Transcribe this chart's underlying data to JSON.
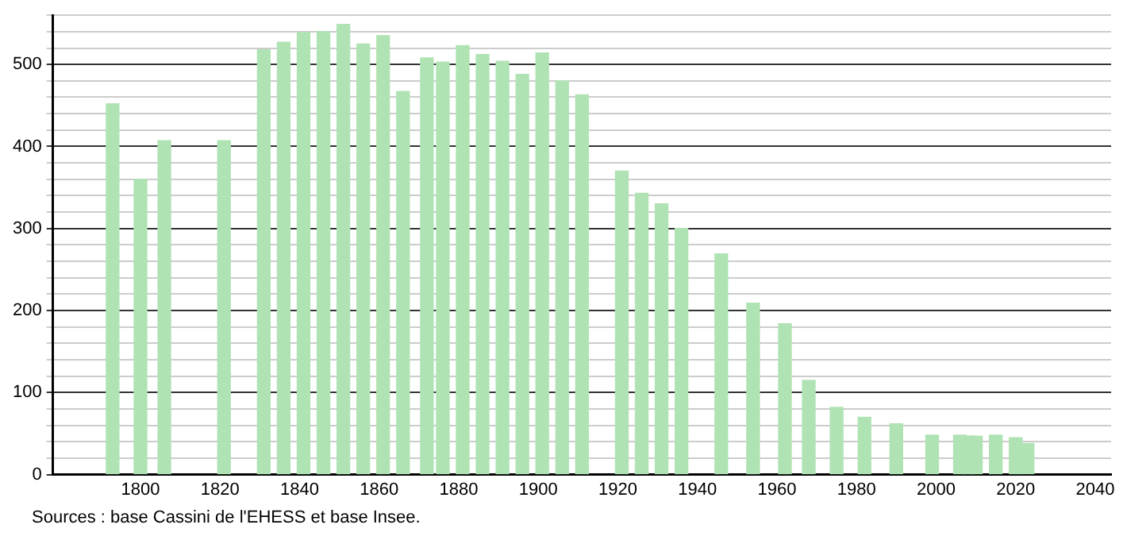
{
  "chart_data": {
    "type": "bar",
    "x": [
      1793,
      1800,
      1806,
      1821,
      1831,
      1836,
      1841,
      1846,
      1851,
      1856,
      1861,
      1866,
      1872,
      1876,
      1881,
      1886,
      1891,
      1896,
      1901,
      1906,
      1911,
      1921,
      1926,
      1931,
      1936,
      1946,
      1954,
      1962,
      1968,
      1975,
      1982,
      1990,
      1999,
      2006,
      2008,
      2010,
      2015,
      2020,
      2023
    ],
    "values": [
      452,
      360,
      407,
      407,
      518,
      527,
      539,
      540,
      549,
      525,
      535,
      467,
      508,
      503,
      523,
      512,
      504,
      488,
      514,
      480,
      463,
      370,
      343,
      330,
      300,
      269,
      209,
      184,
      115,
      82,
      70,
      62,
      48,
      48,
      47,
      47,
      48,
      45,
      38
    ],
    "color": "#b0e3b4",
    "xlim": [
      1778,
      2044
    ],
    "xticks": [
      1800,
      1820,
      1840,
      1860,
      1880,
      1900,
      1920,
      1940,
      1960,
      1980,
      2000,
      2020,
      2040
    ],
    "ylim": [
      0,
      560
    ],
    "yticks": [
      0,
      {
        "value": 20,
        "label": null
      },
      {
        "value": 40,
        "label": null
      },
      {
        "value": 60,
        "label": null
      },
      {
        "value": 80,
        "label": null
      },
      100,
      {
        "value": 120,
        "label": null
      },
      {
        "value": 140,
        "label": null
      },
      {
        "value": 160,
        "label": null
      },
      {
        "value": 180,
        "label": null
      },
      200,
      {
        "value": 220,
        "label": null
      },
      {
        "value": 240,
        "label": null
      },
      {
        "value": 260,
        "label": null
      },
      {
        "value": 280,
        "label": null
      },
      300,
      {
        "value": 320,
        "label": null
      },
      {
        "value": 340,
        "label": null
      },
      {
        "value": 360,
        "label": null
      },
      {
        "value": 380,
        "label": null
      },
      400,
      {
        "value": 420,
        "label": null
      },
      {
        "value": 440,
        "label": null
      },
      {
        "value": 460,
        "label": null
      },
      {
        "value": 480,
        "label": null
      },
      500,
      {
        "value": 520,
        "label": null
      },
      {
        "value": 540,
        "label": null
      },
      {
        "value": 560,
        "label": null
      }
    ],
    "grid": "y",
    "legend": false,
    "annotations": [
      "Sources : base Cassini de l'EHESS et base Insee."
    ]
  }
}
